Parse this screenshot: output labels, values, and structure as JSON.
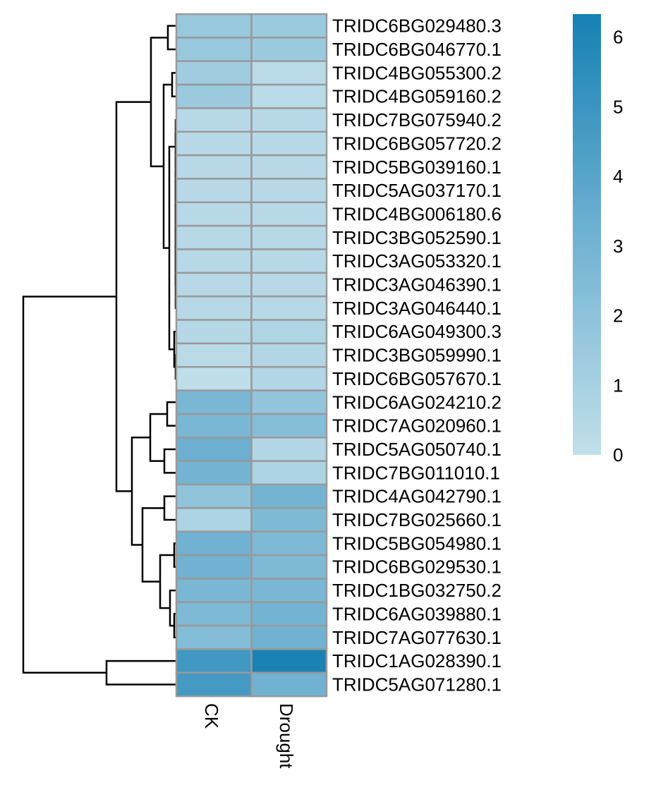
{
  "chart_data": {
    "type": "heatmap",
    "title": "",
    "columns": [
      "CK",
      "Drought"
    ],
    "rows": [
      "TRIDC6BG029480.3",
      "TRIDC6BG046770.1",
      "TRIDC4BG055300.2",
      "TRIDC4BG059160.2",
      "TRIDC7BG075940.2",
      "TRIDC6BG057720.2",
      "TRIDC5BG039160.1",
      "TRIDC5AG037170.1",
      "TRIDC4BG006180.6",
      "TRIDC3BG052590.1",
      "TRIDC3AG053320.1",
      "TRIDC3AG046390.1",
      "TRIDC3AG046440.1",
      "TRIDC6AG049300.3",
      "TRIDC3BG059990.1",
      "TRIDC6BG057670.1",
      "TRIDC6AG024210.2",
      "TRIDC7AG020960.1",
      "TRIDC5AG050740.1",
      "TRIDC7BG011010.1",
      "TRIDC4AG042790.1",
      "TRIDC7BG025660.1",
      "TRIDC5BG054980.1",
      "TRIDC6BG029530.1",
      "TRIDC1BG032750.2",
      "TRIDC6AG039880.1",
      "TRIDC7AG077630.1",
      "TRIDC1AG028390.1",
      "TRIDC5AG071280.1"
    ],
    "values": [
      [
        1.6,
        1.5
      ],
      [
        1.6,
        1.5
      ],
      [
        1.3,
        0.3
      ],
      [
        1.5,
        0.3
      ],
      [
        0.4,
        0.4
      ],
      [
        0.4,
        0.4
      ],
      [
        0.4,
        0.4
      ],
      [
        0.4,
        0.4
      ],
      [
        0.4,
        0.4
      ],
      [
        0.4,
        0.4
      ],
      [
        0.4,
        0.4
      ],
      [
        0.4,
        0.4
      ],
      [
        0.4,
        0.4
      ],
      [
        0.5,
        0.7
      ],
      [
        0.3,
        0.6
      ],
      [
        0.1,
        0.6
      ],
      [
        2.8,
        1.8
      ],
      [
        2.8,
        2.3
      ],
      [
        3.3,
        0.6
      ],
      [
        3.0,
        0.8
      ],
      [
        1.9,
        3.0
      ],
      [
        0.8,
        2.6
      ],
      [
        3.1,
        2.6
      ],
      [
        3.1,
        2.6
      ],
      [
        2.8,
        2.8
      ],
      [
        2.6,
        3.0
      ],
      [
        2.4,
        3.1
      ],
      [
        4.8,
        6.2
      ],
      [
        4.7,
        3.1
      ]
    ],
    "colorbar": {
      "range": [
        0,
        6.33
      ],
      "ticks": [
        "0",
        "1",
        "2",
        "3",
        "4",
        "5",
        "6"
      ],
      "tick_values": [
        0,
        1,
        2,
        3,
        4,
        5,
        6
      ],
      "colors": [
        "#c1dfea",
        "#74b4d3",
        "#1681b3"
      ],
      "placement": "right"
    },
    "row_dendrogram": true,
    "cell_border_color": "#999999"
  }
}
